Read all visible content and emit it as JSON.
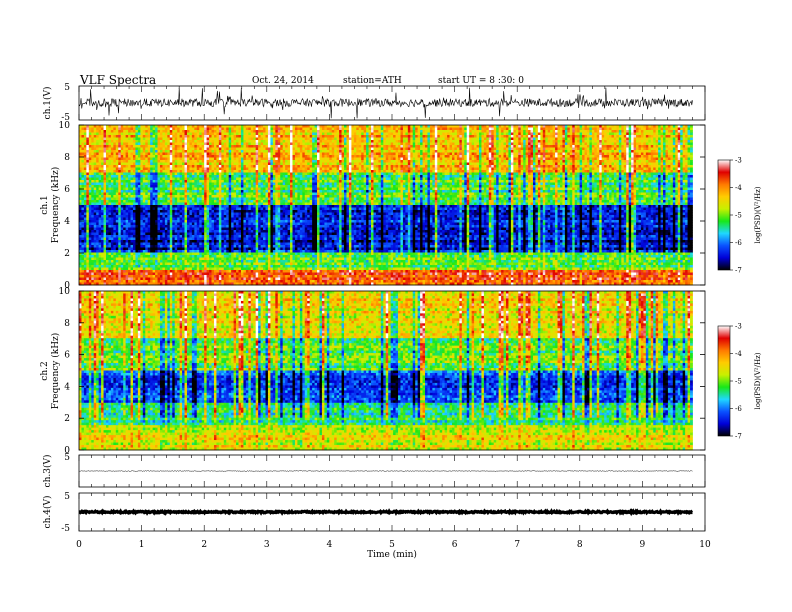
{
  "header": {
    "title": "VLF  Spectra",
    "date": "Oct. 24, 2014",
    "station": "station=ATH",
    "start": "start  UT  =   8 :30: 0"
  },
  "chart_data": [
    {
      "type": "line",
      "panel": "ch1-waveform",
      "ylabel": "ch.1(V)",
      "ylim": [
        -5,
        5
      ],
      "yticks": [
        5,
        -5
      ],
      "x_range_min": [
        0,
        9.8
      ],
      "description_values": "noisy waveform centred near 0 V with bursts up to about +/-4 V",
      "series": [
        {
          "values_approx": {
            "mean": 0.1,
            "noise_amplitude": 1.2,
            "spike_amplitude": 4
          }
        }
      ]
    },
    {
      "type": "heatmap",
      "panel": "ch1-spectrogram",
      "ylabel": "ch.1\nFrequency  (kHz)",
      "ylabel_lines": [
        "ch.1",
        "Frequency  (kHz)"
      ],
      "ylim": [
        0,
        10
      ],
      "yticks": [
        0,
        2,
        4,
        6,
        8,
        10
      ],
      "xlim": [
        0,
        9.8
      ],
      "zlabel": "log(PSD)(V²/Hz)",
      "zlim": [
        -7,
        -3
      ],
      "zticks": [
        -3,
        -4,
        -5,
        -6,
        -7
      ],
      "bands": [
        {
          "f_from": 0,
          "f_to": 0.9,
          "level": -3.6
        },
        {
          "f_from": 0.9,
          "f_to": 2.0,
          "level": -5.1
        },
        {
          "f_from": 2.0,
          "f_to": 5.0,
          "level": -6.4
        },
        {
          "f_from": 5.0,
          "f_to": 7.0,
          "level": -5.2
        },
        {
          "f_from": 7.0,
          "f_to": 10.0,
          "level": -4.3
        }
      ]
    },
    {
      "type": "heatmap",
      "panel": "ch2-spectrogram",
      "ylabel_lines": [
        "ch.2",
        "Frequency  (kHz)"
      ],
      "ylim": [
        0,
        10
      ],
      "yticks": [
        0,
        2,
        4,
        6,
        8,
        10
      ],
      "xlim": [
        0,
        9.8
      ],
      "zlabel": "log(PSD)(V²/Hz)",
      "zlim": [
        -7,
        -3
      ],
      "zticks": [
        -3,
        -4,
        -5,
        -6,
        -7
      ],
      "bands": [
        {
          "f_from": 0,
          "f_to": 1.5,
          "level": -4.6
        },
        {
          "f_from": 1.5,
          "f_to": 3.0,
          "level": -5.4
        },
        {
          "f_from": 3.0,
          "f_to": 5.0,
          "level": -6.2
        },
        {
          "f_from": 5.0,
          "f_to": 7.0,
          "level": -5.1
        },
        {
          "f_from": 7.0,
          "f_to": 10.0,
          "level": -4.5
        }
      ]
    },
    {
      "type": "line",
      "panel": "ch3-waveform",
      "ylabel": "ch.3(V)",
      "ylim": [
        -5,
        5
      ],
      "yticks": [
        5
      ],
      "series": [
        {
          "values_approx": {
            "mean": 0,
            "noise_amplitude": 0.1
          }
        }
      ]
    },
    {
      "type": "line",
      "panel": "ch4-waveform",
      "ylabel": "ch.4(V)",
      "ylim": [
        -5,
        5
      ],
      "yticks": [
        5,
        -5
      ],
      "series": [
        {
          "values_approx": {
            "mean": 0,
            "noise_amplitude": 0.2
          }
        }
      ]
    }
  ],
  "xaxis": {
    "label": "Time  (min)",
    "ticks": [
      "0",
      "1",
      "2",
      "3",
      "4",
      "5",
      "6",
      "7",
      "8",
      "9",
      "10"
    ],
    "xlim": [
      0,
      10
    ]
  },
  "colors": {
    "colorbar_stops": [
      "#000000",
      "#0000d8",
      "#0a52ff",
      "#1fd8ff",
      "#18e818",
      "#c8f000",
      "#ffcc00",
      "#ff7a00",
      "#e00000",
      "#ffffff"
    ]
  }
}
